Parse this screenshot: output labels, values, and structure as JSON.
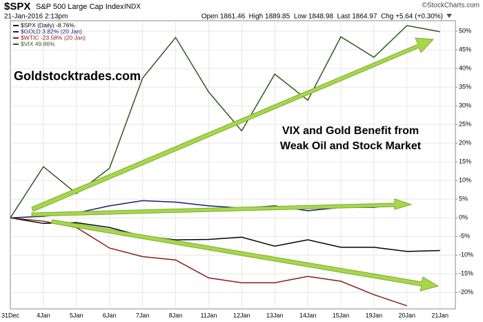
{
  "header": {
    "symbol": "$SPX",
    "name": "S&P 500 Large Cap Index",
    "exchange": "INDX",
    "date": "21-Jan-2016 2:13pm",
    "quote": "Open 1861.46  High 1889.85  Low 1848.98  Last 1864.97  Chg +5.64 (+0.30%)",
    "credit": "©StockCharts.com"
  },
  "chart_data": {
    "type": "line",
    "annotations": [
      "Goldstocktrades.com",
      "VIX and Gold Benefit from",
      "Weak Oil and Stock Market"
    ],
    "categories": [
      "31Dec",
      "4Jan",
      "5Jan",
      "6Jan",
      "7Jan",
      "8Jan",
      "11Jan",
      "12Jan",
      "13Jan",
      "14Jan",
      "15Jan",
      "19Jan",
      "20Jan",
      "21Jan"
    ],
    "series": [
      {
        "name": "$SPX (Daily) -8.76%",
        "color": "#000000",
        "values": [
          0,
          -1.5,
          -1.3,
          -2.6,
          -4.9,
          -5.9,
          -5.8,
          -5.2,
          -7.6,
          -5.9,
          -7.9,
          -7.9,
          -9.0,
          -8.76
        ]
      },
      {
        "name": "$GOLD 3.82% (20 Jan)",
        "color": "#1a1a6e",
        "values": [
          0,
          0.4,
          1.3,
          3.2,
          4.6,
          4.2,
          3.2,
          2.6,
          3.2,
          1.9,
          2.8,
          2.8,
          3.82,
          null
        ]
      },
      {
        "name": "$WTIC -23.58% (20 Jan)",
        "color": "#8b1a1a",
        "values": [
          0,
          -0.9,
          -2.6,
          -8.1,
          -10.4,
          -11.3,
          -16.1,
          -17.4,
          -17.4,
          -15.7,
          -17.0,
          -20.6,
          -23.58,
          null
        ]
      },
      {
        "name": "$VIX 49.86%",
        "color": "#2d5a1b",
        "values": [
          0,
          13.7,
          6.5,
          13.3,
          37.4,
          48.3,
          33.7,
          23.3,
          38.5,
          31.5,
          48.5,
          43.0,
          51.5,
          49.86
        ]
      }
    ],
    "ylim": [
      -24.4,
      52.8
    ],
    "yticks": [
      {
        "value": -20,
        "label": "-20%"
      },
      {
        "value": -15,
        "label": "-15%"
      },
      {
        "value": -10,
        "label": "-10%"
      },
      {
        "value": -5,
        "label": "-5%"
      },
      {
        "value": 0,
        "label": "0%"
      },
      {
        "value": 5,
        "label": "5%"
      },
      {
        "value": 10,
        "label": "10%"
      },
      {
        "value": 15,
        "label": "15%"
      },
      {
        "value": 20,
        "label": "20%"
      },
      {
        "value": 25,
        "label": "25%"
      },
      {
        "value": 30,
        "label": "30%"
      },
      {
        "value": 35,
        "label": "35%"
      },
      {
        "value": 40,
        "label": "40%"
      },
      {
        "value": 45,
        "label": "45%"
      },
      {
        "value": 50,
        "label": "50%"
      }
    ],
    "grid": true
  }
}
